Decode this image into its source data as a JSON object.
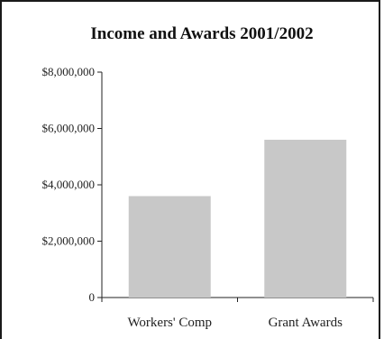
{
  "chart_data": {
    "type": "bar",
    "title": "Income and Awards 2001/2002",
    "xlabel": "",
    "ylabel": "",
    "categories": [
      "Workers' Comp",
      "Grant Awards"
    ],
    "values": [
      3600000,
      5600000
    ],
    "ylim": [
      0,
      8000000
    ],
    "yticks": [
      {
        "value": 0,
        "label": "0"
      },
      {
        "value": 2000000,
        "label": "$2,000,000"
      },
      {
        "value": 4000000,
        "label": "$4,000,000"
      },
      {
        "value": 6000000,
        "label": "$6,000,000"
      },
      {
        "value": 8000000,
        "label": "$8,000,000"
      }
    ],
    "bar_color": "#c8c8c8",
    "grid": false,
    "legend": "none"
  }
}
